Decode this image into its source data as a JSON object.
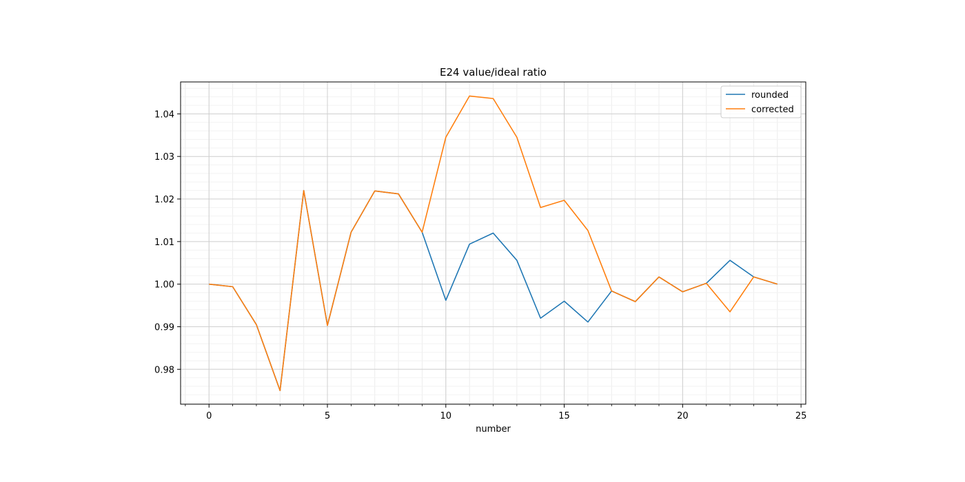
{
  "chart_data": {
    "type": "line",
    "title": "E24 value/ideal ratio",
    "xlabel": "number",
    "ylabel": "",
    "xlim": [
      -1.2,
      25.2
    ],
    "ylim": [
      0.9718,
      1.0475
    ],
    "xticks": [
      0,
      5,
      10,
      15,
      20,
      25
    ],
    "xtick_labels": [
      "0",
      "5",
      "10",
      "15",
      "20",
      "25"
    ],
    "yticks": [
      0.98,
      0.99,
      1.0,
      1.01,
      1.02,
      1.03,
      1.04
    ],
    "ytick_labels": [
      "0.98",
      "0.99",
      "1.00",
      "1.01",
      "1.02",
      "1.03",
      "1.04"
    ],
    "grid": "major and minor",
    "legend_position": "top-right",
    "x": [
      0,
      1,
      2,
      3,
      4,
      5,
      6,
      7,
      8,
      9,
      10,
      11,
      12,
      13,
      14,
      15,
      16,
      17,
      18,
      19,
      20,
      21,
      22,
      23,
      24
    ],
    "series": [
      {
        "name": "rounded",
        "color": "#1f77b4",
        "values": [
          1.0,
          0.9994,
          0.9905,
          0.975,
          1.022,
          0.9903,
          1.0122,
          1.0219,
          1.0212,
          1.0122,
          0.9962,
          1.0094,
          1.012,
          1.0056,
          0.992,
          0.996,
          0.9911,
          0.9984,
          0.9959,
          1.0017,
          0.9982,
          1.0002,
          1.0056,
          1.0017,
          1.0
        ]
      },
      {
        "name": "corrected",
        "color": "#ff7f0e",
        "values": [
          1.0,
          0.9994,
          0.9905,
          0.975,
          1.022,
          0.9903,
          1.0122,
          1.0219,
          1.0212,
          1.0122,
          1.0345,
          1.0442,
          1.0436,
          1.0345,
          1.018,
          1.0197,
          1.0126,
          0.9984,
          0.9959,
          1.0017,
          0.9982,
          1.0002,
          0.9935,
          1.0017,
          1.0
        ]
      }
    ]
  }
}
